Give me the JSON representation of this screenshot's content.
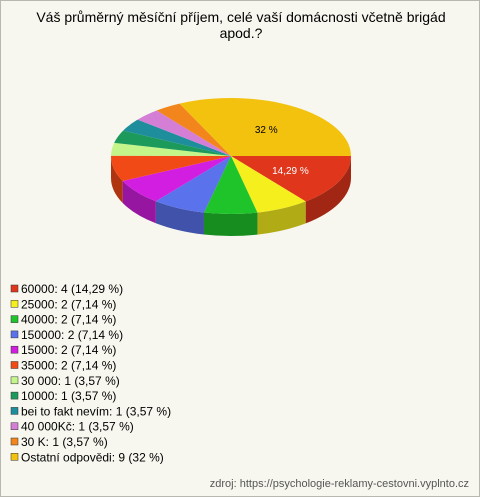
{
  "chart_data": {
    "type": "pie3d",
    "title": "Váš průměrný měsíční příjem, celé vaší domácnosti včetně brigád apod.?",
    "categories": [
      "60000: 4 (14,29 %)",
      "25000: 2 (7,14 %)",
      "40000: 2 (7,14 %)",
      "150000: 2 (7,14 %)",
      "15000: 2 (7,14 %)",
      "35000: 2 (7,14 %)",
      "30 000: 1 (3,57 %)",
      "10000: 1 (3,57 %)",
      "bei to fakt nevím: 1 (3,57 %)",
      "40 000Kč: 1 (3,57 %)",
      "30 K: 1 (3,57 %)",
      "Ostatní odpovědi: 9 (32 %)"
    ],
    "values": [
      14.29,
      7.14,
      7.14,
      7.14,
      7.14,
      7.14,
      3.57,
      3.57,
      3.57,
      3.57,
      3.57,
      32
    ],
    "value_labels": [
      "14,29 %",
      null,
      null,
      null,
      null,
      null,
      null,
      null,
      null,
      null,
      null,
      "32 %"
    ],
    "colors": [
      "#e0361c",
      "#f6ef1e",
      "#1fc42a",
      "#5a72ec",
      "#d21ee0",
      "#f24a16",
      "#c4f58a",
      "#1c9a5c",
      "#1f8e9c",
      "#d47ed6",
      "#f2861c",
      "#f2c20e"
    ],
    "source": "zdroj: https://psychologie-reklamy-cestovni.vyplnto.cz"
  }
}
